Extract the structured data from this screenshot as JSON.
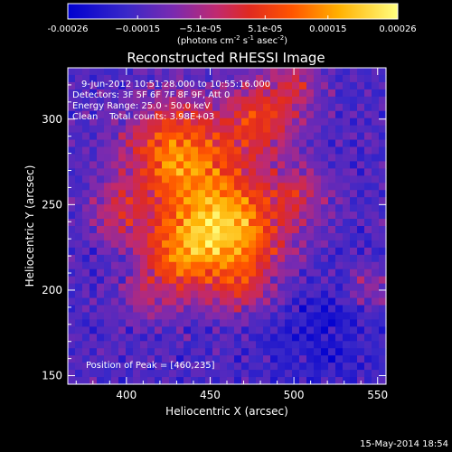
{
  "chart_data": {
    "type": "heatmap",
    "title": "Reconstructed RHESSI Image",
    "xlabel": "Heliocentric X (arcsec)",
    "ylabel": "Heliocentric Y (arcsec)",
    "xlim": [
      365,
      555
    ],
    "ylim": [
      145,
      330
    ],
    "x_ticks": [
      400,
      450,
      500,
      550
    ],
    "y_ticks": [
      150,
      200,
      250,
      300
    ],
    "colorbar": {
      "label_parts": [
        "(photons cm",
        "-2",
        " s",
        "-1",
        " asec",
        "-2",
        ")"
      ],
      "range": [
        -0.00026,
        0.00026
      ],
      "ticks": [
        -0.00026,
        -0.00015,
        -5.1e-05,
        5.1e-05,
        0.00015,
        0.00026
      ],
      "tick_labels": [
        "-0.00026",
        "−0.00015",
        "−5.1e-05",
        "5.1e-05",
        "0.00015",
        "0.00026"
      ]
    },
    "peak_position": [
      460,
      235
    ],
    "annotations": [
      "9-Jun-2012 10:51:28.000 to 10:55:16.000",
      "Detectors: 3F 5F 6F 7F 8F 9F, Att 0",
      "Energy Range: 25.0 - 50.0 keV",
      "Clean    Total counts: 3.98E+03",
      "Position of Peak = [460,235]"
    ],
    "grid": false
  },
  "footer": {
    "timestamp": "15-May-2014 18:54"
  }
}
